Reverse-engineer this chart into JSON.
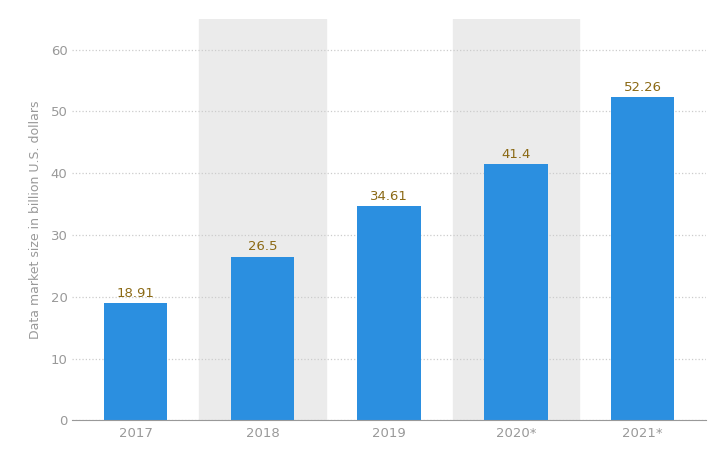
{
  "categories": [
    "2017",
    "2018",
    "2019",
    "2020*",
    "2021*"
  ],
  "values": [
    18.91,
    26.5,
    34.61,
    41.4,
    52.26
  ],
  "bar_color": "#2B8FE0",
  "label_color": "#8B6914",
  "ylabel": "Data market size in billion U.S. dollars",
  "ylim": [
    0,
    65
  ],
  "yticks": [
    0,
    10,
    20,
    30,
    40,
    50,
    60
  ],
  "grid_color": "#cccccc",
  "bg_color": "#ffffff",
  "shaded_bg_color": "#ebebeb",
  "bar_width": 0.5,
  "label_fontsize": 9.5,
  "tick_fontsize": 9.5,
  "ylabel_fontsize": 9,
  "shaded_indices": [
    1,
    3
  ],
  "tick_color": "#999999",
  "spine_color": "#999999"
}
